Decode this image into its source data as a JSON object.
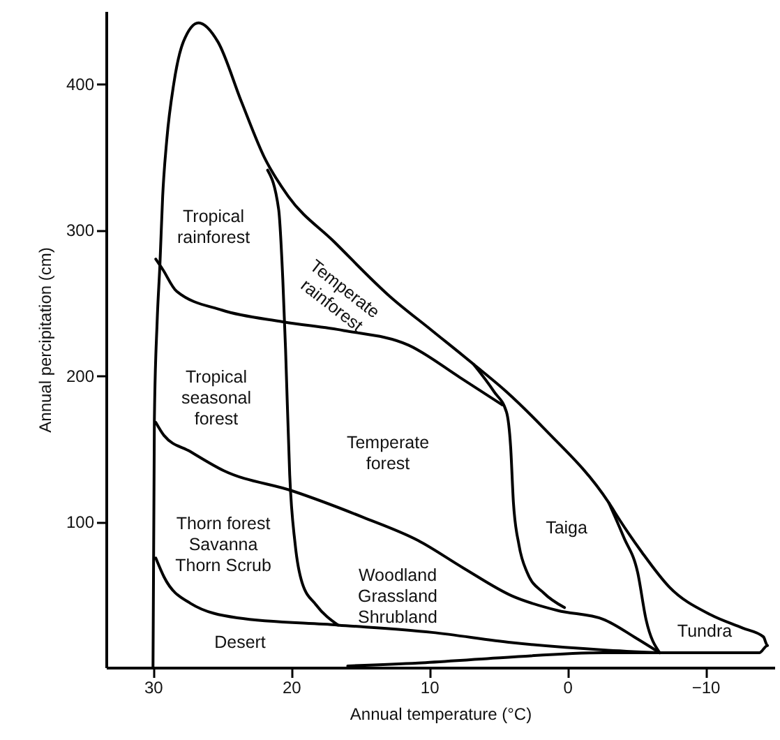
{
  "chart_data": {
    "type": "line",
    "xlabel": "Annual temperature (°C)",
    "ylabel": "Annual percipitation (cm)",
    "xlim": [
      33.4,
      -15
    ],
    "ylim": [
      0,
      450
    ],
    "xticks": [
      30,
      20,
      10,
      0,
      -10
    ],
    "yticks": [
      100,
      200,
      300,
      400
    ],
    "grid": false,
    "series": [
      {
        "color": "#000000",
        "x": [
          -6.7,
          -2.6,
          5.8,
          10.8,
          15.9
        ],
        "values": [
          10,
          10,
          6,
          3,
          1
        ]
      },
      {
        "color": "#000000",
        "x": [
          30,
          29.9,
          29.7,
          29.5,
          29.3,
          29,
          28.5,
          27.8,
          26.7,
          25.3,
          23.6,
          21.9,
          20.2,
          16.9,
          12.8,
          9.8,
          6.8,
          4.4,
          1.7,
          -3,
          -3.8,
          -5.4,
          -7.4,
          -10.4,
          -12.7,
          -14.2,
          -14.5,
          -13.9,
          -9.4,
          -6.7
        ],
        "values": [
          0,
          170,
          237,
          276,
          323,
          362,
          400,
          429,
          442,
          429,
          388,
          349,
          323,
          292,
          254,
          231,
          208,
          189,
          164,
          113,
          101,
          79,
          55,
          36,
          27,
          21,
          15,
          10,
          10,
          10
        ]
      },
      {
        "color": "#000000",
        "x": [
          21.7,
          20.9,
          20.6,
          20.4,
          20.1,
          19.7,
          19.2,
          18.2,
          16.6
        ],
        "values": [
          341,
          314,
          266,
          218,
          132,
          84,
          58,
          43,
          29
        ]
      },
      {
        "color": "#000000",
        "x": [
          29.8,
          29.3,
          28.3,
          25,
          20.6,
          16.2,
          11.5,
          7.8,
          4.7
        ],
        "values": [
          280,
          273,
          258,
          245,
          237,
          231,
          221,
          199,
          180
        ]
      },
      {
        "color": "#000000",
        "x": [
          6.8,
          5.3,
          4.4,
          4.1,
          3.9,
          3.5,
          2.9,
          1.7,
          0.2
        ],
        "values": [
          208,
          189,
          175,
          151,
          113,
          84,
          65,
          51,
          41
        ]
      },
      {
        "color": "#000000",
        "x": [
          -3,
          -4.1,
          -5.1,
          -5.7,
          -6.7
        ],
        "values": [
          113,
          89,
          65,
          33,
          10
        ]
      },
      {
        "color": "#000000",
        "x": [
          29.8,
          29.2,
          27.3,
          24.9,
          19.9,
          14.8,
          10.8,
          7.5,
          4,
          0.7,
          -2.6,
          -5,
          -6.7
        ],
        "values": [
          168,
          159,
          148,
          135,
          121,
          103,
          87,
          68,
          49,
          39,
          33,
          20,
          10
        ]
      },
      {
        "color": "#000000",
        "x": [
          29.8,
          29.2,
          27.3,
          23.9,
          16.6,
          9.8,
          4,
          -2.6,
          -6.7
        ],
        "values": [
          75,
          62,
          44,
          34,
          29,
          24,
          17,
          12,
          10
        ]
      }
    ],
    "annotations": [
      "Tropical\nrainforest",
      "Temperate\nrainforest",
      "Tropical\nseasonal\nforest",
      "Temperate\nforest",
      "Thorn forest\nSavanna\nThorn Scrub",
      "Woodland\nGrassland\nShrubland",
      "Taiga",
      "Tundra",
      "Desert"
    ]
  }
}
